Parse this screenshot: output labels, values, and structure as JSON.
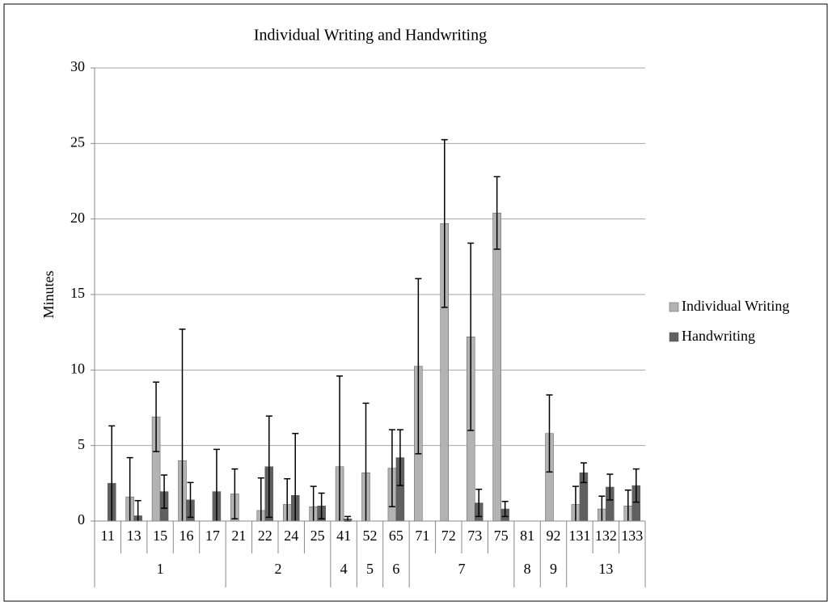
{
  "chart_data": {
    "type": "bar",
    "title": "Individual Writing and Handwriting",
    "y_label": "Minutes",
    "categories": [
      "11",
      "13",
      "15",
      "16",
      "17",
      "21",
      "22",
      "24",
      "25",
      "41",
      "52",
      "65",
      "71",
      "72",
      "73",
      "75",
      "81",
      "92",
      "131",
      "132",
      "133"
    ],
    "groups": [
      {
        "label": "1",
        "span": 5
      },
      {
        "label": "2",
        "span": 4
      },
      {
        "label": "4",
        "span": 1
      },
      {
        "label": "5",
        "span": 1
      },
      {
        "label": "6",
        "span": 1
      },
      {
        "label": "7",
        "span": 4
      },
      {
        "label": "8",
        "span": 1
      },
      {
        "label": "9",
        "span": 1
      },
      {
        "label": "13",
        "span": 3
      }
    ],
    "series": [
      {
        "name": "Individual Writing",
        "color": "#b3b3b3",
        "values": [
          0,
          1.6,
          6.9,
          4.0,
          0,
          1.8,
          0.7,
          1.1,
          0.95,
          3.6,
          3.2,
          3.5,
          10.25,
          19.7,
          12.2,
          20.4,
          0,
          5.8,
          1.1,
          0.8,
          1.0
        ],
        "errors": [
          0,
          2.6,
          2.3,
          8.7,
          0,
          1.65,
          2.15,
          1.7,
          1.35,
          6.0,
          4.6,
          2.55,
          5.8,
          5.55,
          6.2,
          2.4,
          0,
          2.55,
          1.2,
          0.85,
          1.05
        ]
      },
      {
        "name": "Handwriting",
        "color": "#606060",
        "values": [
          2.5,
          0.35,
          1.95,
          1.4,
          1.95,
          0,
          3.6,
          1.7,
          1.0,
          0.15,
          0,
          4.2,
          0,
          0,
          1.2,
          0.8,
          0,
          0,
          3.2,
          2.25,
          2.35
        ],
        "errors": [
          3.8,
          1.0,
          1.1,
          1.15,
          2.8,
          0,
          3.35,
          4.1,
          0.85,
          0.15,
          0,
          1.85,
          0,
          0,
          0.9,
          0.5,
          0,
          0,
          0.65,
          0.85,
          1.1
        ]
      }
    ],
    "ylim": [
      0,
      30
    ],
    "yticks": [
      0,
      5,
      10,
      15,
      20,
      25,
      30
    ],
    "grid": true,
    "legend": "right"
  }
}
